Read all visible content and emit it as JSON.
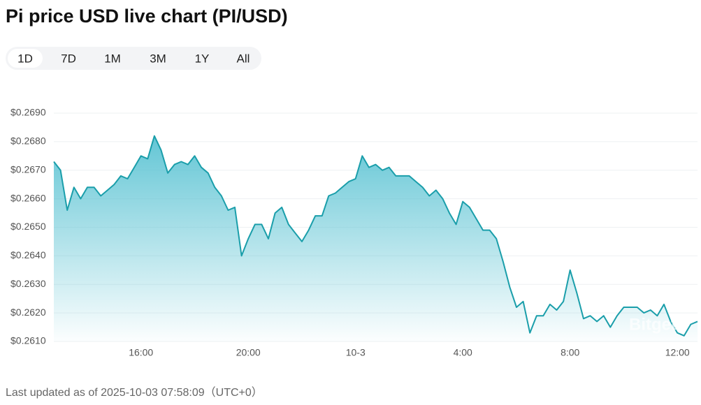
{
  "chart_data": {
    "type": "area",
    "title": "Pi price USD live chart (PI/USD)",
    "tabs": [
      "1D",
      "7D",
      "1M",
      "3M",
      "1Y",
      "All"
    ],
    "active_tab": 0,
    "footer": "Last updated as of 2025-10-03 07:58:09（UTC+0）",
    "watermark": "Bitget",
    "color": "#1a9eaa",
    "grid": true,
    "ylim": [
      0.261,
      0.269
    ],
    "yticks": [
      {
        "value": 0.261,
        "label": "$0.2610"
      },
      {
        "value": 0.262,
        "label": "$0.2620"
      },
      {
        "value": 0.263,
        "label": "$0.2630"
      },
      {
        "value": 0.264,
        "label": "$0.2640"
      },
      {
        "value": 0.265,
        "label": "$0.2650"
      },
      {
        "value": 0.266,
        "label": "$0.2660"
      },
      {
        "value": 0.267,
        "label": "$0.2670"
      },
      {
        "value": 0.268,
        "label": "$0.2680"
      },
      {
        "value": 0.269,
        "label": "$0.2690"
      }
    ],
    "categories": [
      null,
      null,
      null,
      null,
      null,
      null,
      null,
      null,
      null,
      null,
      null,
      null,
      null,
      "16:00",
      null,
      null,
      null,
      null,
      null,
      null,
      null,
      null,
      null,
      null,
      null,
      null,
      null,
      null,
      null,
      "20:00",
      null,
      null,
      null,
      null,
      null,
      null,
      null,
      null,
      null,
      null,
      null,
      null,
      null,
      null,
      null,
      "10-3",
      null,
      null,
      null,
      null,
      null,
      null,
      null,
      null,
      null,
      null,
      null,
      null,
      null,
      null,
      null,
      "4:00",
      null,
      null,
      null,
      null,
      null,
      null,
      null,
      null,
      null,
      null,
      null,
      null,
      null,
      null,
      null,
      "8:00",
      null,
      null,
      null,
      null,
      null,
      null,
      null,
      null,
      null,
      null,
      null,
      null,
      null,
      null,
      null,
      "12:00",
      null,
      null,
      null
    ],
    "values": [
      0.2673,
      0.267,
      0.2656,
      0.2664,
      0.266,
      0.2664,
      0.2664,
      0.2661,
      0.2663,
      0.2665,
      0.2668,
      0.2667,
      0.2671,
      0.2675,
      0.2674,
      0.2682,
      0.2677,
      0.2669,
      0.2672,
      0.2673,
      0.2672,
      0.2675,
      0.2671,
      0.2669,
      0.2664,
      0.2661,
      0.2656,
      0.2657,
      0.264,
      0.2646,
      0.2651,
      0.2651,
      0.2646,
      0.2655,
      0.2657,
      0.2651,
      0.2648,
      0.2645,
      0.2649,
      0.2654,
      0.2654,
      0.2661,
      0.2662,
      0.2664,
      0.2666,
      0.2667,
      0.2675,
      0.2671,
      0.2672,
      0.267,
      0.2671,
      0.2668,
      0.2668,
      0.2668,
      0.2666,
      0.2664,
      0.2661,
      0.2663,
      0.266,
      0.2655,
      0.2651,
      0.2659,
      0.2657,
      0.2653,
      0.2649,
      0.2649,
      0.2646,
      0.2638,
      0.2629,
      0.2622,
      0.2624,
      0.2613,
      0.2619,
      0.2619,
      0.2623,
      0.2621,
      0.2624,
      0.2635,
      0.2627,
      0.2618,
      0.2619,
      0.2617,
      0.2619,
      0.2615,
      0.2619,
      0.2622,
      0.2622,
      0.2622,
      0.262,
      0.2621,
      0.2619,
      0.2623,
      0.2617,
      0.2613,
      0.2612,
      0.2616,
      0.2617
    ]
  }
}
